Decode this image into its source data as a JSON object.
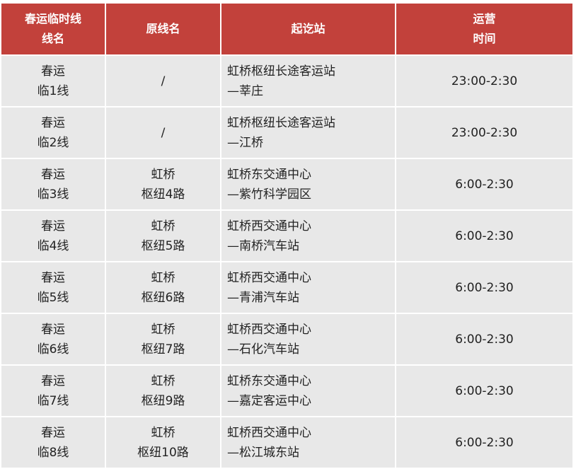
{
  "header_color": "#c2413b",
  "headers": [
    {
      "l1": "春运临时线",
      "l2": "线名"
    },
    {
      "l1": "原线名",
      "l2": ""
    },
    {
      "l1": "起讫站",
      "l2": ""
    },
    {
      "l1": "运营",
      "l2": "时间"
    }
  ],
  "rows": [
    {
      "name1": "春运",
      "name2": "临1线",
      "orig1": "/",
      "orig2": "",
      "st1": "虹桥枢纽长途客运站",
      "st2": "—莘庄",
      "time": "23:00-2:30"
    },
    {
      "name1": "春运",
      "name2": "临2线",
      "orig1": "/",
      "orig2": "",
      "st1": "虹桥枢纽长途客运站",
      "st2": "—江桥",
      "time": "23:00-2:30"
    },
    {
      "name1": "春运",
      "name2": "临3线",
      "orig1": "虹桥",
      "orig2": "枢纽4路",
      "st1": "虹桥东交通中心",
      "st2": "—紫竹科学园区",
      "time": "6:00-2:30"
    },
    {
      "name1": "春运",
      "name2": "临4线",
      "orig1": "虹桥",
      "orig2": "枢纽5路",
      "st1": "虹桥西交通中心",
      "st2": "—南桥汽车站",
      "time": "6:00-2:30"
    },
    {
      "name1": "春运",
      "name2": "临5线",
      "orig1": "虹桥",
      "orig2": "枢纽6路",
      "st1": "虹桥西交通中心",
      "st2": "—青浦汽车站",
      "time": "6:00-2:30"
    },
    {
      "name1": "春运",
      "name2": "临6线",
      "orig1": "虹桥",
      "orig2": "枢纽7路",
      "st1": "虹桥西交通中心",
      "st2": "—石化汽车站",
      "time": "6:00-2:30"
    },
    {
      "name1": "春运",
      "name2": "临7线",
      "orig1": "虹桥",
      "orig2": "枢纽9路",
      "st1": "虹桥东交通中心",
      "st2": "—嘉定客运中心",
      "time": "6:00-2:30"
    },
    {
      "name1": "春运",
      "name2": "临8线",
      "orig1": "虹桥",
      "orig2": "枢纽10路",
      "st1": "虹桥西交通中心",
      "st2": "—松江城东站",
      "time": "6:00-2:30"
    }
  ]
}
